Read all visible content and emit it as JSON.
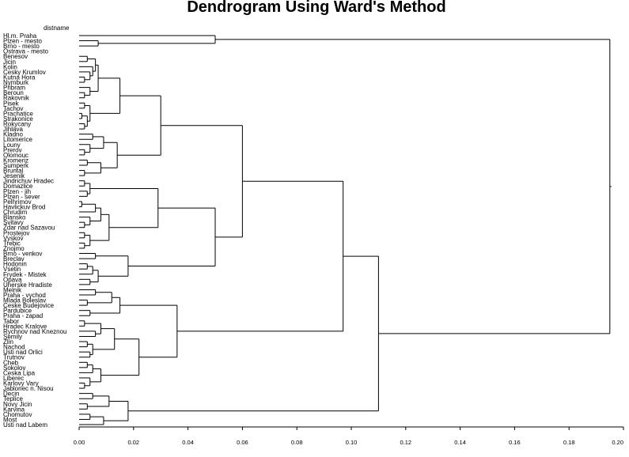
{
  "chart_data": {
    "type": "dendrogram",
    "title": "Dendrogram Using Ward's Method",
    "variable_label": "distname",
    "xlim": [
      0,
      0.2
    ],
    "xticks": [
      "0.00",
      "0.02",
      "0.04",
      "0.06",
      "0.08",
      "0.10",
      "0.12",
      "0.14",
      "0.16",
      "0.18",
      "0.20"
    ],
    "xtick_values": [
      0,
      0.02,
      0.04,
      0.06,
      0.08,
      0.1,
      0.12,
      0.14,
      0.16,
      0.18,
      0.2
    ],
    "leaves": [
      "Hl.m. Praha",
      "Plzen - mesto",
      "Brno - mesto",
      "Ostrava - mesto",
      "Benesov",
      "Jicin",
      "Kolin",
      "Cesky Krumlov",
      "Kutna Hora",
      "Nymburk",
      "Pribram",
      "Beroun",
      "Rakovnik",
      "Pisek",
      "Tachov",
      "Prachatice",
      "Strakonice",
      "Rokycany",
      "Jihlava",
      "Kladno",
      "Litomerice",
      "Louny",
      "Prerov",
      "Olomouc",
      "Kromeriz",
      "Sumperk",
      "Bruntal",
      "Jesenik",
      "Jindrichuv Hradec",
      "Domazlice",
      "Plzen - jih",
      "Plzen - sever",
      "Pelhrimov",
      "Havlickuv Brod",
      "Chrudim",
      "Blansko",
      "Svitavy",
      "Zdar nad Sazavou",
      "Prostejov",
      "Vyskov",
      "Trebic",
      "Znojmo",
      "Brno - venkov",
      "Breclav",
      "Hodonin",
      "Vsetin",
      "Frydek - Mistek",
      "Opava",
      "Uherske Hradiste",
      "Melnik",
      "Praha - vychod",
      "Mlada Boleslav",
      "Ceske Budejovice",
      "Pardubice",
      "Praha - zapad",
      "Tabor",
      "Hradec Kralove",
      "Rychnov nad Kneznou",
      "Semily",
      "Zlin",
      "Nachod",
      "Usti nad Orlici",
      "Trutnov",
      "Cheb",
      "Sokolov",
      "Ceska Lipa",
      "Liberec",
      "Karlovy Vary",
      "Jablonec n. Nisou",
      "Decin",
      "Teplice",
      "Novy Jicin",
      "Karvina",
      "Chomutov",
      "Most",
      "Usti nad Labem"
    ],
    "tree": [
      0.195,
      [
        0.05,
        [
          "Hl.m. Praha"
        ],
        [
          0.007,
          [
            "Plzen - mesto"
          ],
          [
            "Brno - mesto"
          ]
        ]
      ],
      [
        0.11,
        [
          0.097,
          [
            0.06,
            [
              0.03,
              [
                0.015,
                [
                  0.007,
                  [
                    0.006,
                    [
                      0.003,
                      [
                        "Benesov"
                      ],
                      [
                        "Jicin"
                      ]
                    ],
                    [
                      0.005,
                      [
                        "Kolin"
                      ],
                      [
                        0.004,
                        [
                          "Cesky Krumlov"
                        ],
                        [
                          0.002,
                          [
                            "Kutna Hora"
                          ],
                          [
                            "Nymburk"
                          ]
                        ]
                      ]
                    ]
                  ],
                  [
                    0.004,
                    [
                      "Pribram"
                    ],
                    [
                      0.002,
                      [
                        "Beroun"
                      ],
                      [
                        "Rakovnik"
                      ]
                    ]
                  ]
                ],
                [
                  0.004,
                  [
                    0.002,
                    [
                      "Pisek"
                    ],
                    [
                      "Tachov"
                    ]
                  ],
                  [
                    0.003,
                    [
                      0.001,
                      [
                        "Prachatice"
                      ],
                      [
                        "Strakonice"
                      ]
                    ],
                    [
                      0.002,
                      [
                        "Rokycany"
                      ],
                      [
                        "Jihlava"
                      ]
                    ]
                  ]
                ]
              ],
              [
                0.014,
                [
                  0.009,
                  [
                    0.005,
                    [
                      "Kladno"
                    ],
                    [
                      "Litomerice"
                    ]
                  ],
                  [
                    0.004,
                    [
                      "Louny"
                    ],
                    [
                      0.002,
                      [
                        "Prerov"
                      ],
                      [
                        "Olomouc"
                      ]
                    ]
                  ]
                ],
                [
                  0.008,
                  [
                    0.003,
                    [
                      "Kromeriz"
                    ],
                    [
                      "Sumperk"
                    ]
                  ],
                  [
                    0.002,
                    [
                      "Bruntal"
                    ],
                    [
                      "Jesenik"
                    ]
                  ]
                ]
              ]
            ],
            [
              0.05,
              [
                0.029,
                [
                  0.004,
                  [
                    0.002,
                    [
                      "Jindrichuv Hradec"
                    ],
                    [
                      "Domazlice"
                    ]
                  ],
                  [
                    0.003,
                    [
                      "Plzen - jih"
                    ],
                    [
                      "Plzen - sever"
                    ]
                  ]
                ],
                [
                  0.011,
                  [
                    0.008,
                    [
                      0.006,
                      [
                        0.001,
                        [
                          "Pelhrimov"
                        ],
                        [
                          "Havlickuv Brod"
                        ]
                      ],
                      [
                        "Chrudim"
                      ]
                    ],
                    [
                      0.004,
                      [
                        "Blansko"
                      ],
                      [
                        0.002,
                        [
                          "Svitavy"
                        ],
                        [
                          "Zdar nad Sazavou"
                        ]
                      ]
                    ]
                  ],
                  [
                    0.004,
                    [
                      0.002,
                      [
                        "Prostejov"
                      ],
                      [
                        "Vyskov"
                      ]
                    ],
                    [
                      0.002,
                      [
                        "Trebic"
                      ],
                      [
                        "Znojmo"
                      ]
                    ]
                  ]
                ]
              ],
              [
                0.018,
                [
                  0.006,
                  [
                    "Brno - venkov"
                  ],
                  [
                    "Breclav"
                  ]
                ],
                [
                  0.007,
                  [
                    0.005,
                    [
                      0.003,
                      [
                        "Hodonin"
                      ],
                      [
                        "Vsetin"
                      ]
                    ],
                    [
                      "Frydek - Mistek"
                    ]
                  ],
                  [
                    0.004,
                    [
                      "Opava"
                    ],
                    [
                      "Uherske Hradiste"
                    ]
                  ]
                ]
              ]
            ]
          ],
          [
            0.036,
            [
              0.015,
              [
                0.012,
                [
                  0.006,
                  [
                    "Melnik"
                  ],
                  [
                    "Praha - vychod"
                  ]
                ],
                [
                  0.003,
                  [
                    "Mlada Boleslav"
                  ],
                  [
                    "Ceske Budejovice"
                  ]
                ]
              ],
              [
                0.004,
                [
                  "Pardubice"
                ],
                [
                  "Praha - zapad"
                ]
              ]
            ],
            [
              0.022,
              [
                0.013,
                [
                  0.008,
                  [
                    0.002,
                    [
                      "Tabor"
                    ],
                    [
                      "Hradec Kralove"
                    ]
                  ],
                  [
                    0.006,
                    [
                      "Rychnov nad Kneznou"
                    ],
                    [
                      "Semily"
                    ]
                  ]
                ],
                [
                  0.005,
                  [
                    0.003,
                    [
                      "Zlin"
                    ],
                    [
                      "Nachod"
                    ]
                  ],
                  [
                    0.004,
                    [
                      "Usti nad Orlici"
                    ],
                    [
                      "Trutnov"
                    ]
                  ]
                ]
              ],
              [
                0.008,
                [
                  0.005,
                  [
                    0.003,
                    [
                      "Cheb"
                    ],
                    [
                      "Sokolov"
                    ]
                  ],
                  [
                    "Ceska Lipa"
                  ]
                ],
                [
                  0.004,
                  [
                    "Liberec"
                  ],
                  [
                    0.002,
                    [
                      "Karlovy Vary"
                    ],
                    [
                      "Jablonec n. Nisou"
                    ]
                  ]
                ]
              ]
            ]
          ]
        ],
        [
          0.018,
          [
            0.011,
            [
              0.005,
              [
                "Decin"
              ],
              [
                "Teplice"
              ]
            ],
            [
              0.003,
              [
                "Novy Jicin"
              ],
              [
                "Karvina"
              ]
            ]
          ],
          [
            0.009,
            [
              0.004,
              [
                "Chomutov"
              ],
              [
                "Most"
              ]
            ],
            [
              "Usti nad Labem"
            ]
          ]
        ]
      ]
    ]
  }
}
